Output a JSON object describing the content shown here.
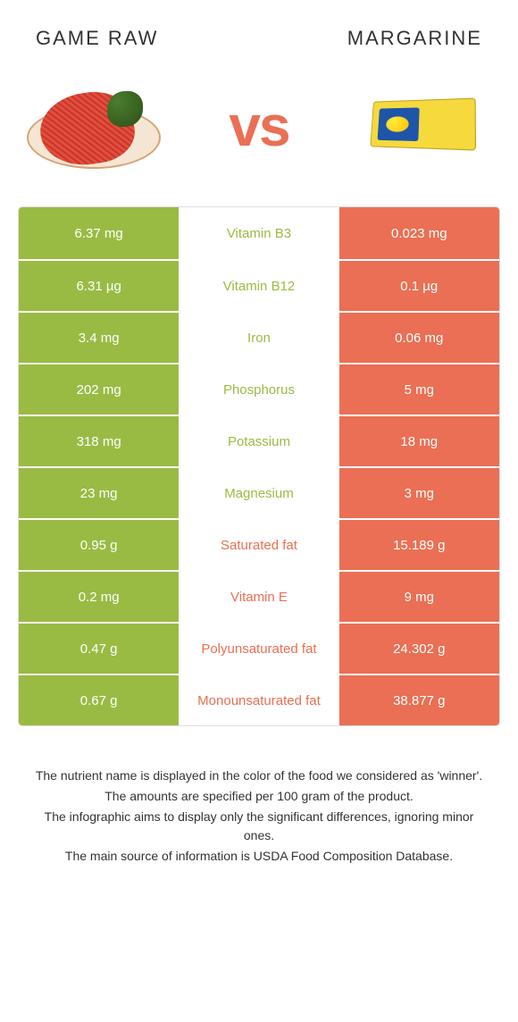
{
  "titles": {
    "left": "Game raw",
    "right": "Margarine"
  },
  "vs_label": "vs",
  "colors": {
    "green": "#99bb44",
    "orange": "#ea6f54"
  },
  "rows": [
    {
      "left": "6.37 mg",
      "mid": "Vitamin B3",
      "right": "0.023 mg",
      "winner": "left"
    },
    {
      "left": "6.31 µg",
      "mid": "Vitamin B12",
      "right": "0.1 µg",
      "winner": "left"
    },
    {
      "left": "3.4 mg",
      "mid": "Iron",
      "right": "0.06 mg",
      "winner": "left"
    },
    {
      "left": "202 mg",
      "mid": "Phosphorus",
      "right": "5 mg",
      "winner": "left"
    },
    {
      "left": "318 mg",
      "mid": "Potassium",
      "right": "18 mg",
      "winner": "left"
    },
    {
      "left": "23 mg",
      "mid": "Magnesium",
      "right": "3 mg",
      "winner": "left"
    },
    {
      "left": "0.95 g",
      "mid": "Saturated fat",
      "right": "15.189 g",
      "winner": "right"
    },
    {
      "left": "0.2 mg",
      "mid": "Vitamin E",
      "right": "9 mg",
      "winner": "right"
    },
    {
      "left": "0.47 g",
      "mid": "Polyunsaturated fat",
      "right": "24.302 g",
      "winner": "right"
    },
    {
      "left": "0.67 g",
      "mid": "Monounsaturated fat",
      "right": "38.877 g",
      "winner": "right"
    }
  ],
  "footer": {
    "line1": "The nutrient name is displayed in the color of the food we considered as 'winner'.",
    "line2": "The amounts are specified per 100 gram of the product.",
    "line3": "The infographic aims to display only the significant differences, ignoring minor ones.",
    "line4": "The main source of information is USDA Food Composition Database."
  }
}
